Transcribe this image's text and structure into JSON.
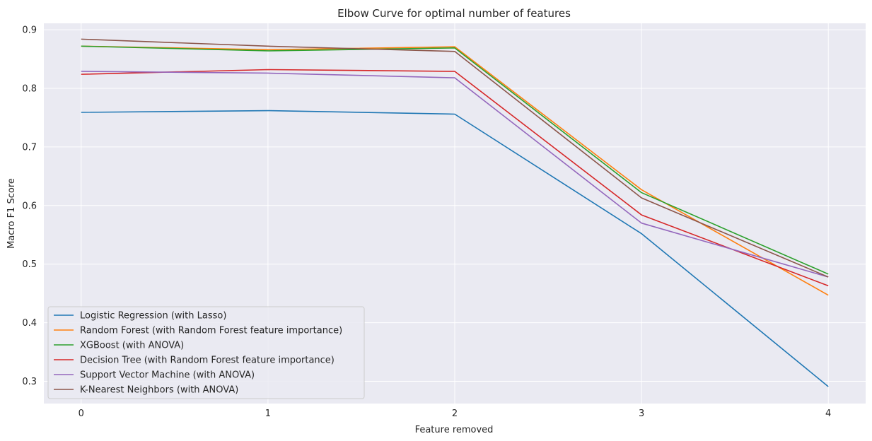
{
  "chart_data": {
    "type": "line",
    "title": "Elbow Curve for optimal number of features",
    "xlabel": "Feature removed",
    "ylabel": "Macro F1 Score",
    "x": [
      0,
      1,
      2,
      3,
      4
    ],
    "xticks": [
      "0",
      "1",
      "2",
      "3",
      "4"
    ],
    "yticks": [
      "0.3",
      "0.4",
      "0.5",
      "0.6",
      "0.7",
      "0.8",
      "0.9"
    ],
    "xlim": [
      -0.2,
      4.2
    ],
    "ylim": [
      0.262,
      0.911
    ],
    "grid": true,
    "legend_position": "lower-left",
    "series": [
      {
        "name": "Logistic Regression (with Lasso)",
        "color": "#1f77b4",
        "values": [
          0.759,
          0.762,
          0.756,
          0.552,
          0.291
        ]
      },
      {
        "name": "Random Forest (with Random Forest feature importance)",
        "color": "#ff7f0e",
        "values": [
          0.872,
          0.866,
          0.871,
          0.627,
          0.447
        ]
      },
      {
        "name": "XGBoost (with ANOVA)",
        "color": "#2ca02c",
        "values": [
          0.872,
          0.864,
          0.869,
          0.622,
          0.483
        ]
      },
      {
        "name": "Decision Tree (with Random Forest feature importance)",
        "color": "#d62728",
        "values": [
          0.824,
          0.832,
          0.829,
          0.584,
          0.463
        ]
      },
      {
        "name": "Support Vector Machine (with ANOVA)",
        "color": "#9467bd",
        "values": [
          0.829,
          0.826,
          0.818,
          0.57,
          0.478
        ]
      },
      {
        "name": "K-Nearest Neighbors (with ANOVA)",
        "color": "#8c564b",
        "values": [
          0.884,
          0.872,
          0.863,
          0.613,
          0.478
        ]
      }
    ]
  }
}
